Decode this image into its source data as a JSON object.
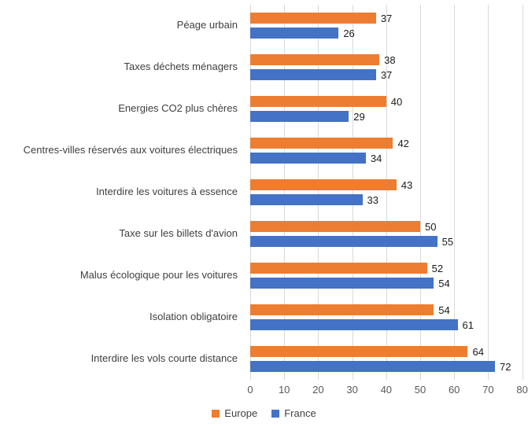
{
  "chart_data": {
    "type": "bar",
    "orientation": "horizontal",
    "title": "",
    "xlabel": "",
    "ylabel": "",
    "categories": [
      "Péage urbain",
      "Taxes déchets ménagers",
      "Energies CO2 plus chères",
      "Centres-villes réservés aux voitures électriques",
      "Interdire les voitures à essence",
      "Taxe sur les billets d'avion",
      "Malus écologique pour les voitures",
      "Isolation obligatoire",
      "Interdire les vols courte distance"
    ],
    "series": [
      {
        "name": "Europe",
        "color": "#ED7D31",
        "values": [
          37,
          38,
          40,
          42,
          43,
          50,
          52,
          54,
          64
        ]
      },
      {
        "name": "France",
        "color": "#4472C4",
        "values": [
          26,
          37,
          29,
          34,
          33,
          55,
          54,
          61,
          72
        ]
      }
    ],
    "xlim": [
      0,
      80
    ],
    "x_ticks": [
      0,
      10,
      20,
      30,
      40,
      50,
      60,
      70,
      80
    ],
    "grid": true,
    "legend_position": "bottom",
    "data_labels": true
  }
}
